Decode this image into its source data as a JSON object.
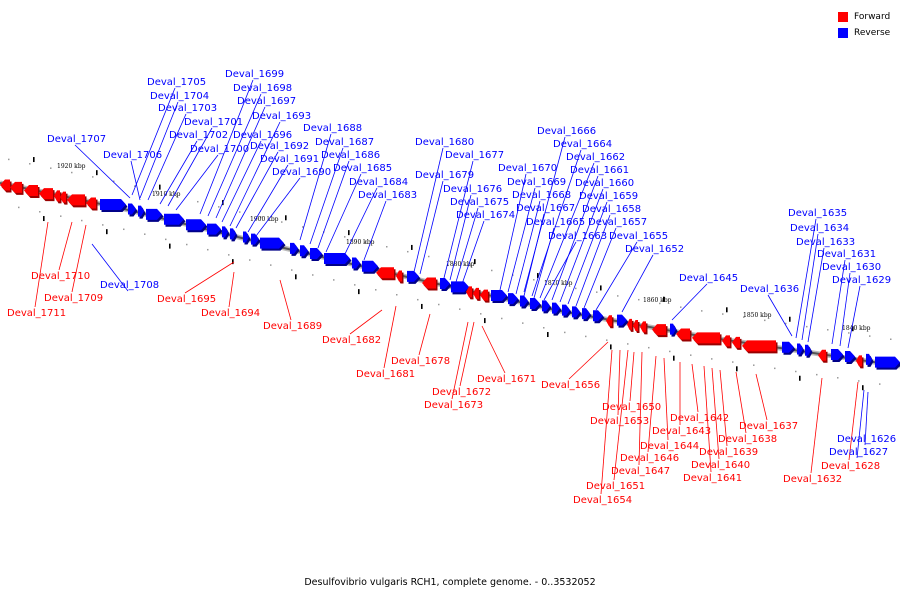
{
  "legend": {
    "forward_label": "Forward",
    "reverse_label": "Reverse",
    "forward_color": "#ff0000",
    "reverse_color": "#0000ff"
  },
  "caption": "Desulfovibrio vulgaris RCH1, complete genome. - 0..3532052",
  "scale_ticks": [
    "1920 kbp",
    "1910 kbp",
    "1900 kbp",
    "1890 kbp",
    "1880 kbp",
    "1870 kbp",
    "1860 kbp",
    "1850 kbp",
    "1840 kbp"
  ],
  "genes": [
    {
      "name": "Deval_1711",
      "strand": "forward"
    },
    {
      "name": "Deval_1710",
      "strand": "forward"
    },
    {
      "name": "Deval_1709",
      "strand": "forward"
    },
    {
      "name": "Deval_1708",
      "strand": "reverse"
    },
    {
      "name": "Deval_1707",
      "strand": "reverse"
    },
    {
      "name": "Deval_1706",
      "strand": "reverse"
    },
    {
      "name": "Deval_1705",
      "strand": "reverse"
    },
    {
      "name": "Deval_1704",
      "strand": "reverse"
    },
    {
      "name": "Deval_1703",
      "strand": "reverse"
    },
    {
      "name": "Deval_1702",
      "strand": "reverse"
    },
    {
      "name": "Deval_1701",
      "strand": "reverse"
    },
    {
      "name": "Deval_1700",
      "strand": "reverse"
    },
    {
      "name": "Deval_1699",
      "strand": "reverse"
    },
    {
      "name": "Deval_1698",
      "strand": "reverse"
    },
    {
      "name": "Deval_1697",
      "strand": "reverse"
    },
    {
      "name": "Deval_1696",
      "strand": "reverse"
    },
    {
      "name": "Deval_1695",
      "strand": "forward"
    },
    {
      "name": "Deval_1694",
      "strand": "forward"
    },
    {
      "name": "Deval_1693",
      "strand": "reverse"
    },
    {
      "name": "Deval_1692",
      "strand": "reverse"
    },
    {
      "name": "Deval_1691",
      "strand": "reverse"
    },
    {
      "name": "Deval_1690",
      "strand": "reverse"
    },
    {
      "name": "Deval_1689",
      "strand": "forward"
    },
    {
      "name": "Deval_1688",
      "strand": "reverse"
    },
    {
      "name": "Deval_1687",
      "strand": "reverse"
    },
    {
      "name": "Deval_1686",
      "strand": "reverse"
    },
    {
      "name": "Deval_1685",
      "strand": "reverse"
    },
    {
      "name": "Deval_1684",
      "strand": "reverse"
    },
    {
      "name": "Deval_1683",
      "strand": "reverse"
    },
    {
      "name": "Deval_1682",
      "strand": "forward"
    },
    {
      "name": "Deval_1681",
      "strand": "forward"
    },
    {
      "name": "Deval_1680",
      "strand": "reverse"
    },
    {
      "name": "Deval_1679",
      "strand": "reverse"
    },
    {
      "name": "Deval_1678",
      "strand": "forward"
    },
    {
      "name": "Deval_1677",
      "strand": "reverse"
    },
    {
      "name": "Deval_1676",
      "strand": "reverse"
    },
    {
      "name": "Deval_1675",
      "strand": "reverse"
    },
    {
      "name": "Deval_1674",
      "strand": "reverse"
    },
    {
      "name": "Deval_1673",
      "strand": "forward"
    },
    {
      "name": "Deval_1672",
      "strand": "forward"
    },
    {
      "name": "Deval_1671",
      "strand": "forward"
    },
    {
      "name": "Deval_1670",
      "strand": "reverse"
    },
    {
      "name": "Deval_1669",
      "strand": "reverse"
    },
    {
      "name": "Deval_1668",
      "strand": "reverse"
    },
    {
      "name": "Deval_1667",
      "strand": "reverse"
    },
    {
      "name": "Deval_1666",
      "strand": "reverse"
    },
    {
      "name": "Deval_1665",
      "strand": "reverse"
    },
    {
      "name": "Deval_1664",
      "strand": "reverse"
    },
    {
      "name": "Deval_1663",
      "strand": "reverse"
    },
    {
      "name": "Deval_1662",
      "strand": "reverse"
    },
    {
      "name": "Deval_1661",
      "strand": "reverse"
    },
    {
      "name": "Deval_1660",
      "strand": "reverse"
    },
    {
      "name": "Deval_1659",
      "strand": "reverse"
    },
    {
      "name": "Deval_1658",
      "strand": "reverse"
    },
    {
      "name": "Deval_1657",
      "strand": "reverse"
    },
    {
      "name": "Deval_1656",
      "strand": "forward"
    },
    {
      "name": "Deval_1655",
      "strand": "reverse"
    },
    {
      "name": "Deval_1654",
      "strand": "forward"
    },
    {
      "name": "Deval_1653",
      "strand": "forward"
    },
    {
      "name": "Deval_1652",
      "strand": "reverse"
    },
    {
      "name": "Deval_1651",
      "strand": "forward"
    },
    {
      "name": "Deval_1650",
      "strand": "forward"
    },
    {
      "name": "Deval_1647",
      "strand": "forward"
    },
    {
      "name": "Deval_1646",
      "strand": "forward"
    },
    {
      "name": "Deval_1645",
      "strand": "reverse"
    },
    {
      "name": "Deval_1644",
      "strand": "forward"
    },
    {
      "name": "Deval_1643",
      "strand": "forward"
    },
    {
      "name": "Deval_1642",
      "strand": "forward"
    },
    {
      "name": "Deval_1641",
      "strand": "forward"
    },
    {
      "name": "Deval_1640",
      "strand": "forward"
    },
    {
      "name": "Deval_1639",
      "strand": "forward"
    },
    {
      "name": "Deval_1638",
      "strand": "forward"
    },
    {
      "name": "Deval_1637",
      "strand": "forward"
    },
    {
      "name": "Deval_1636",
      "strand": "reverse"
    },
    {
      "name": "Deval_1635",
      "strand": "reverse"
    },
    {
      "name": "Deval_1634",
      "strand": "reverse"
    },
    {
      "name": "Deval_1633",
      "strand": "reverse"
    },
    {
      "name": "Deval_1632",
      "strand": "forward"
    },
    {
      "name": "Deval_1631",
      "strand": "reverse"
    },
    {
      "name": "Deval_1630",
      "strand": "reverse"
    },
    {
      "name": "Deval_1629",
      "strand": "reverse"
    },
    {
      "name": "Deval_1628",
      "strand": "forward"
    },
    {
      "name": "Deval_1627",
      "strand": "reverse"
    },
    {
      "name": "Deval_1626",
      "strand": "reverse"
    }
  ]
}
